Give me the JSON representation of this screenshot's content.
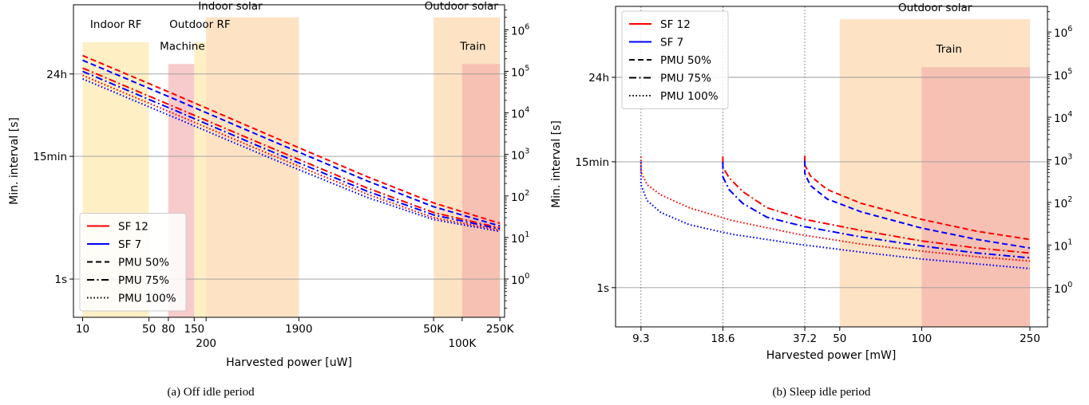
{
  "chart_data": [
    {
      "type": "line",
      "caption": "(a) Off idle period",
      "xlabel": "Harvested power [uW]",
      "ylabel": "Min. interval [s]",
      "xscale": "log",
      "yscale": "log",
      "xlim": [
        8,
        280000
      ],
      "ylim": [
        0.12,
        4000000
      ],
      "xticks": [
        {
          "v": 10,
          "label": "10",
          "row": 0
        },
        {
          "v": 50,
          "label": "50",
          "row": 0
        },
        {
          "v": 80,
          "label": "80",
          "row": 0
        },
        {
          "v": 150,
          "label": "150",
          "row": 0
        },
        {
          "v": 200,
          "label": "200",
          "row": 1
        },
        {
          "v": 1900,
          "label": "1900",
          "row": 0
        },
        {
          "v": 50000,
          "label": "50K",
          "row": 0
        },
        {
          "v": 100000,
          "label": "100K",
          "row": 1
        },
        {
          "v": 250000,
          "label": "250K",
          "row": 0
        }
      ],
      "yticks_left": [
        {
          "v": 1,
          "label": "1s"
        },
        {
          "v": 900,
          "label": "15min"
        },
        {
          "v": 86400,
          "label": "24h"
        }
      ],
      "yticks_right": [
        {
          "v": 1,
          "base": "10",
          "exp": "0"
        },
        {
          "v": 10,
          "base": "10",
          "exp": "1"
        },
        {
          "v": 100,
          "base": "10",
          "exp": "2"
        },
        {
          "v": 1000,
          "base": "10",
          "exp": "3"
        },
        {
          "v": 10000,
          "base": "10",
          "exp": "4"
        },
        {
          "v": 100000,
          "base": "10",
          "exp": "5"
        },
        {
          "v": 1000000,
          "base": "10",
          "exp": "6"
        }
      ],
      "grid_y": [
        1,
        900,
        86400
      ],
      "regions": [
        {
          "name": "Indoor RF",
          "x0": 10,
          "x1": 50,
          "top": 500000,
          "color": "#fde9b2",
          "opacity": 0.75,
          "label_x": 12,
          "label_y": 1100000
        },
        {
          "name": "Machine",
          "x0": 80,
          "x1": 150,
          "top": 150000,
          "color": "#f2a9a9",
          "opacity": 0.6,
          "label_x": 65,
          "label_y": 330000
        },
        {
          "name": "Outdoor RF",
          "x0": 150,
          "x1": 200,
          "top": 500000,
          "color": "#fde9b2",
          "opacity": 0.75,
          "label_x": 82,
          "label_y": 1100000
        },
        {
          "name": "Indoor solar",
          "x0": 200,
          "x1": 1900,
          "top": 2000000,
          "color": "#fcd9b0",
          "opacity": 0.75,
          "label_x": 165,
          "label_y": 3100000
        },
        {
          "name": "Outdoor solar",
          "x0": 50000,
          "x1": 250000,
          "top": 2000000,
          "color": "#fcd9b0",
          "opacity": 0.75,
          "label_x": 40000,
          "label_y": 3100000
        },
        {
          "name": "Train",
          "x0": 100000,
          "x1": 250000,
          "top": 150000,
          "color": "#f2a9a9",
          "opacity": 0.6,
          "label_x": 95000,
          "label_y": 330000
        }
      ],
      "series": [
        {
          "name": "SF 12",
          "color": "#ff0000",
          "style": "dashed",
          "x": [
            10,
            100,
            1000,
            10000,
            50000,
            250000
          ],
          "y": [
            240000,
            26000,
            2700,
            290,
            68,
            22
          ]
        },
        {
          "name": "SF 7",
          "color": "#0000ff",
          "style": "dashed",
          "x": [
            10,
            100,
            1000,
            10000,
            50000,
            250000
          ],
          "y": [
            185000,
            20000,
            2100,
            230,
            55,
            19
          ]
        },
        {
          "name": "SF 12",
          "color": "#ff0000",
          "style": "dashdot",
          "x": [
            10,
            100,
            1000,
            10000,
            50000,
            250000
          ],
          "y": [
            120000,
            13000,
            1400,
            155,
            40,
            17
          ]
        },
        {
          "name": "SF 7",
          "color": "#0000ff",
          "style": "dashdot",
          "x": [
            10,
            100,
            1000,
            10000,
            50000,
            250000
          ],
          "y": [
            100000,
            10800,
            1150,
            130,
            35,
            16
          ]
        },
        {
          "name": "SF 12",
          "color": "#ff0000",
          "style": "dotted",
          "x": [
            10,
            100,
            1000,
            10000,
            50000,
            250000
          ],
          "y": [
            80000,
            8800,
            950,
            110,
            30,
            15
          ]
        },
        {
          "name": "SF 7",
          "color": "#0000ff",
          "style": "dotted",
          "x": [
            10,
            100,
            1000,
            10000,
            50000,
            250000
          ],
          "y": [
            66000,
            7200,
            780,
            92,
            27,
            14
          ]
        }
      ],
      "legend_position": "lower-left",
      "legend": [
        {
          "label": "SF 12",
          "color": "#ff0000",
          "style": "solid"
        },
        {
          "label": "SF 7",
          "color": "#0000ff",
          "style": "solid"
        },
        {
          "label": "PMU 50%",
          "color": "#000000",
          "style": "dashed"
        },
        {
          "label": "PMU 75%",
          "color": "#000000",
          "style": "dashdot"
        },
        {
          "label": "PMU 100%",
          "color": "#000000",
          "style": "dotted"
        }
      ]
    },
    {
      "type": "line",
      "caption": "(b) Sleep idle period",
      "xlabel": "Harvested power [mW]",
      "ylabel": "Min. interval [s]",
      "xscale": "log",
      "yscale": "log",
      "xlim": [
        7.5,
        290
      ],
      "ylim": [
        0.12,
        4000000
      ],
      "xticks": [
        {
          "v": 9.3,
          "label": "9.3",
          "row": 0
        },
        {
          "v": 18.6,
          "label": "18.6",
          "row": 0
        },
        {
          "v": 37.2,
          "label": "37.2",
          "row": 0
        },
        {
          "v": 50,
          "label": "50",
          "row": 0
        },
        {
          "v": 100,
          "label": "100",
          "row": 0
        },
        {
          "v": 250,
          "label": "250",
          "row": 0
        }
      ],
      "yticks_left": [
        {
          "v": 1,
          "label": "1s"
        },
        {
          "v": 900,
          "label": "15min"
        },
        {
          "v": 86400,
          "label": "24h"
        }
      ],
      "yticks_right": [
        {
          "v": 1,
          "base": "10",
          "exp": "0"
        },
        {
          "v": 10,
          "base": "10",
          "exp": "1"
        },
        {
          "v": 100,
          "base": "10",
          "exp": "2"
        },
        {
          "v": 1000,
          "base": "10",
          "exp": "3"
        },
        {
          "v": 10000,
          "base": "10",
          "exp": "4"
        },
        {
          "v": 100000,
          "base": "10",
          "exp": "5"
        },
        {
          "v": 1000000,
          "base": "10",
          "exp": "6"
        }
      ],
      "grid_y": [
        1,
        900,
        86400
      ],
      "vlines": [
        9.3,
        18.6,
        37.2
      ],
      "regions": [
        {
          "name": "Outdoor solar",
          "x0": 50,
          "x1": 250,
          "top": 2000000,
          "color": "#fcd9b0",
          "opacity": 0.75,
          "label_x": 82,
          "label_y": 3100000
        },
        {
          "name": "Train",
          "x0": 100,
          "x1": 250,
          "top": 150000,
          "color": "#f2a9a9",
          "opacity": 0.6,
          "label_x": 113,
          "label_y": 330000
        }
      ],
      "series": [
        {
          "name": "SF 12",
          "color": "#ff0000",
          "style": "dotted",
          "x": [
            9.3,
            9.3,
            9.8,
            11,
            14,
            20,
            35,
            60,
            100,
            160,
            250
          ],
          "y": [
            1200,
            520,
            260,
            150,
            75,
            38,
            18,
            10.5,
            7.2,
            5.3,
            4.2
          ]
        },
        {
          "name": "SF 7",
          "color": "#0000ff",
          "style": "dotted",
          "x": [
            9.3,
            9.3,
            9.8,
            11,
            14,
            20,
            35,
            60,
            100,
            160,
            250
          ],
          "y": [
            900,
            260,
            110,
            58,
            30,
            18,
            10.5,
            6.8,
            4.7,
            3.6,
            2.8
          ]
        },
        {
          "name": "SF 12",
          "color": "#ff0000",
          "style": "dashdot",
          "x": [
            18.6,
            18.6,
            19.6,
            22,
            27,
            37.2,
            60,
            100,
            160,
            250
          ],
          "y": [
            1200,
            680,
            380,
            180,
            75,
            40,
            22,
            12.5,
            8.5,
            6.5
          ]
        },
        {
          "name": "SF 7",
          "color": "#0000ff",
          "style": "dashdot",
          "x": [
            18.6,
            18.6,
            19.6,
            22,
            27,
            37.2,
            60,
            100,
            160,
            250
          ],
          "y": [
            900,
            400,
            200,
            95,
            45,
            27,
            15.5,
            9.5,
            6.5,
            5.0
          ]
        },
        {
          "name": "SF 12",
          "color": "#ff0000",
          "style": "dashed",
          "x": [
            37.2,
            37.2,
            39,
            45,
            60,
            100,
            160,
            250
          ],
          "y": [
            1250,
            760,
            420,
            200,
            95,
            40,
            21,
            13.5
          ]
        },
        {
          "name": "SF 7",
          "color": "#0000ff",
          "style": "dashed",
          "x": [
            37.2,
            37.2,
            39,
            45,
            60,
            100,
            160,
            250
          ],
          "y": [
            950,
            480,
            250,
            120,
            60,
            25,
            13.5,
            8.5
          ]
        }
      ],
      "legend_position": "upper-left",
      "legend": [
        {
          "label": "SF 12",
          "color": "#ff0000",
          "style": "solid"
        },
        {
          "label": "SF 7",
          "color": "#0000ff",
          "style": "solid"
        },
        {
          "label": "PMU 50%",
          "color": "#000000",
          "style": "dashed"
        },
        {
          "label": "PMU 75%",
          "color": "#000000",
          "style": "dashdot"
        },
        {
          "label": "PMU 100%",
          "color": "#000000",
          "style": "dotted"
        }
      ]
    }
  ]
}
